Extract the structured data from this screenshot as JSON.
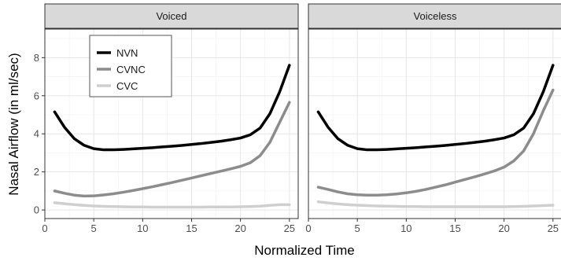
{
  "chart_data": {
    "type": "line",
    "xlabel": "Normalized Time",
    "ylabel": "Nasal Airflow (in ml/sec)",
    "xlim": [
      0,
      25.9
    ],
    "ylim": [
      -0.45,
      9.5
    ],
    "xticks": [
      0,
      5,
      10,
      15,
      20,
      25
    ],
    "yticks": [
      0,
      2,
      4,
      6,
      8
    ],
    "grid": true,
    "legend_position": "top-left",
    "x": [
      1,
      2,
      3,
      4,
      5,
      6,
      7,
      8,
      9,
      10,
      11,
      12,
      13,
      14,
      15,
      16,
      17,
      18,
      19,
      20,
      21,
      22,
      23,
      24,
      25
    ],
    "series_colors": {
      "NVN": "#000000",
      "CVNC": "#8c8c8c",
      "CVC": "#cfcfcf"
    },
    "panels": [
      {
        "title": "Voiced",
        "series": [
          {
            "name": "NVN",
            "values": [
              5.15,
              4.35,
              3.75,
              3.4,
              3.22,
              3.16,
              3.16,
              3.18,
              3.21,
              3.24,
              3.27,
              3.31,
              3.35,
              3.39,
              3.44,
              3.49,
              3.55,
              3.61,
              3.69,
              3.78,
              3.95,
              4.3,
              5.05,
              6.2,
              7.6
            ]
          },
          {
            "name": "CVNC",
            "values": [
              1.0,
              0.88,
              0.78,
              0.73,
              0.74,
              0.79,
              0.85,
              0.93,
              1.02,
              1.12,
              1.22,
              1.33,
              1.44,
              1.56,
              1.68,
              1.8,
              1.92,
              2.04,
              2.16,
              2.29,
              2.48,
              2.85,
              3.55,
              4.6,
              5.65
            ]
          },
          {
            "name": "CVC",
            "values": [
              0.38,
              0.33,
              0.28,
              0.24,
              0.21,
              0.19,
              0.18,
              0.17,
              0.16,
              0.16,
              0.15,
              0.15,
              0.15,
              0.15,
              0.15,
              0.15,
              0.16,
              0.16,
              0.16,
              0.17,
              0.18,
              0.2,
              0.24,
              0.28,
              0.28
            ]
          }
        ]
      },
      {
        "title": "Voiceless",
        "series": [
          {
            "name": "NVN",
            "values": [
              5.15,
              4.35,
              3.75,
              3.4,
              3.22,
              3.16,
              3.16,
              3.18,
              3.21,
              3.24,
              3.27,
              3.31,
              3.35,
              3.39,
              3.44,
              3.49,
              3.55,
              3.61,
              3.69,
              3.78,
              3.95,
              4.3,
              5.05,
              6.2,
              7.6
            ]
          },
          {
            "name": "CVNC",
            "values": [
              1.2,
              1.08,
              0.95,
              0.85,
              0.8,
              0.78,
              0.78,
              0.8,
              0.84,
              0.9,
              0.98,
              1.08,
              1.2,
              1.32,
              1.46,
              1.6,
              1.74,
              1.89,
              2.05,
              2.25,
              2.58,
              3.1,
              4.0,
              5.2,
              6.3
            ]
          },
          {
            "name": "CVC",
            "values": [
              0.43,
              0.37,
              0.32,
              0.28,
              0.25,
              0.23,
              0.21,
              0.2,
              0.19,
              0.18,
              0.18,
              0.17,
              0.17,
              0.17,
              0.17,
              0.17,
              0.17,
              0.17,
              0.17,
              0.17,
              0.18,
              0.19,
              0.21,
              0.23,
              0.25
            ]
          }
        ]
      }
    ]
  }
}
